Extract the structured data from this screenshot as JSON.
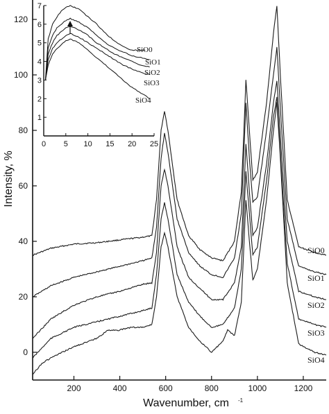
{
  "chart_data": [
    {
      "type": "line",
      "xlabel": "Wavenumber, cm",
      "xlabel_superscript": "-1",
      "ylabel": "Intensity, %",
      "xlim": [
        20,
        1300
      ],
      "ylim": [
        -10,
        127
      ],
      "xticks": [
        200,
        400,
        600,
        800,
        1000,
        1200
      ],
      "yticks": [
        0,
        20,
        40,
        60,
        80,
        100,
        120
      ],
      "grid": false,
      "legend": "none",
      "series": [
        {
          "name": "SiO0",
          "color": "#1a1a1a",
          "x": [
            20,
            100,
            200,
            300,
            400,
            500,
            540,
            560,
            580,
            595,
            610,
            650,
            700,
            750,
            800,
            850,
            900,
            930,
            950,
            965,
            980,
            1000,
            1040,
            1070,
            1085,
            1100,
            1130,
            1180,
            1250,
            1300
          ],
          "y": [
            35,
            37.5,
            39,
            39.5,
            40.5,
            41.5,
            42,
            55,
            80,
            87,
            80,
            55,
            42,
            37,
            34,
            33,
            40,
            58,
            98,
            80,
            62,
            65,
            90,
            115,
            125,
            100,
            55,
            38,
            36,
            35
          ]
        },
        {
          "name": "SiO1",
          "color": "#1a1a1a",
          "x": [
            20,
            100,
            200,
            300,
            400,
            500,
            540,
            560,
            580,
            595,
            610,
            650,
            700,
            750,
            800,
            850,
            900,
            930,
            950,
            965,
            980,
            1000,
            1040,
            1070,
            1085,
            1100,
            1130,
            1180,
            1250,
            1300
          ],
          "y": [
            20,
            24,
            27,
            29,
            31,
            33,
            34,
            45,
            70,
            79,
            72,
            48,
            36,
            31,
            28,
            27,
            34,
            50,
            90,
            70,
            54,
            56,
            80,
            100,
            110,
            88,
            48,
            31,
            29,
            28
          ]
        },
        {
          "name": "SiO2",
          "color": "#1a1a1a",
          "x": [
            20,
            100,
            200,
            300,
            400,
            500,
            540,
            560,
            580,
            595,
            610,
            650,
            700,
            750,
            800,
            850,
            900,
            930,
            950,
            965,
            980,
            1000,
            1040,
            1070,
            1085,
            1100,
            1130,
            1180,
            1250,
            1300
          ],
          "y": [
            5,
            12,
            17,
            20,
            22,
            24.5,
            25,
            36,
            60,
            66,
            60,
            38,
            27,
            23,
            19,
            19,
            25,
            38,
            75,
            58,
            42,
            45,
            68,
            90,
            98,
            78,
            40,
            22,
            20,
            19
          ]
        },
        {
          "name": "SiO3",
          "color": "#1a1a1a",
          "x": [
            20,
            100,
            200,
            300,
            400,
            500,
            540,
            560,
            580,
            595,
            610,
            650,
            700,
            750,
            800,
            850,
            900,
            930,
            950,
            965,
            980,
            1000,
            1040,
            1070,
            1085,
            1100,
            1130,
            1180,
            1250,
            1300
          ],
          "y": [
            -2,
            5,
            9,
            11,
            13,
            15,
            16,
            28,
            48,
            54,
            48,
            28,
            18,
            13,
            9,
            10,
            16,
            30,
            65,
            50,
            35,
            38,
            62,
            85,
            92,
            72,
            32,
            12,
            10,
            9
          ]
        },
        {
          "name": "SiO4",
          "color": "#1a1a1a",
          "x": [
            20,
            60,
            100,
            150,
            200,
            300,
            350,
            400,
            450,
            500,
            540,
            560,
            580,
            595,
            610,
            650,
            700,
            750,
            800,
            850,
            870,
            900,
            930,
            950,
            965,
            980,
            1000,
            1040,
            1070,
            1085,
            1100,
            1130,
            1180,
            1250,
            1300
          ],
          "y": [
            -8,
            -4,
            -2,
            0,
            2,
            5,
            8,
            8,
            9,
            9,
            10,
            20,
            38,
            43,
            38,
            20,
            9,
            4,
            0,
            4,
            8,
            6,
            18,
            55,
            40,
            26,
            30,
            55,
            80,
            90,
            70,
            25,
            3,
            0,
            -1
          ]
        }
      ]
    },
    {
      "type": "line",
      "xlim": [
        0,
        25
      ],
      "ylim": [
        0,
        7
      ],
      "xticks": [
        0,
        5,
        10,
        15,
        20,
        25
      ],
      "yticks": [
        1,
        2,
        3,
        4,
        5,
        6,
        7
      ],
      "grid": false,
      "legend": "none",
      "series": [
        {
          "name": "SiO0",
          "x": [
            0.4,
            1,
            2,
            3,
            4,
            5,
            6,
            7,
            8,
            10,
            12,
            14,
            16,
            18,
            20,
            22,
            23
          ],
          "y": [
            3,
            5.2,
            6.0,
            6.4,
            6.7,
            6.9,
            7.0,
            6.9,
            6.8,
            6.4,
            6.0,
            5.5,
            5.1,
            4.8,
            4.6,
            4.6,
            4.6
          ]
        },
        {
          "name": "SiO1",
          "x": [
            0.4,
            1,
            2,
            3,
            4,
            5,
            6,
            7,
            8,
            10,
            12,
            14,
            16,
            18,
            20,
            22,
            24
          ],
          "y": [
            3,
            4.7,
            5.4,
            5.8,
            6.0,
            6.2,
            6.3,
            6.2,
            6.1,
            5.8,
            5.4,
            5.0,
            4.7,
            4.5,
            4.3,
            4.2,
            4.1
          ]
        },
        {
          "name": "SiO2",
          "x": [
            0.4,
            1,
            2,
            3,
            4,
            5,
            6,
            7,
            8,
            10,
            12,
            14,
            16,
            18,
            20,
            22,
            24
          ],
          "y": [
            3,
            4.4,
            5.0,
            5.4,
            5.6,
            5.8,
            5.9,
            5.8,
            5.7,
            5.4,
            5.0,
            4.7,
            4.4,
            4.2,
            4.0,
            3.8,
            3.7
          ]
        },
        {
          "name": "SiO3",
          "x": [
            0.4,
            1,
            2,
            3,
            4,
            5,
            6,
            7,
            8,
            10,
            12,
            14,
            16,
            18,
            20,
            22,
            24
          ],
          "y": [
            3,
            4.1,
            4.7,
            5.0,
            5.2,
            5.4,
            5.5,
            5.4,
            5.3,
            5.0,
            4.7,
            4.4,
            4.1,
            3.8,
            3.6,
            3.4,
            3.3
          ]
        },
        {
          "name": "SiO4",
          "x": [
            0.4,
            1,
            2,
            3,
            4,
            5,
            6,
            7,
            8,
            10,
            12,
            14,
            16,
            18,
            20,
            22,
            24
          ],
          "y": [
            3,
            3.8,
            4.4,
            4.7,
            4.9,
            5.1,
            5.2,
            5.1,
            5.0,
            4.6,
            4.2,
            3.8,
            3.4,
            3.0,
            2.6,
            2.3,
            2.0
          ]
        }
      ]
    }
  ],
  "main_labels": {
    "s0": "SiO0",
    "s1": "SiO1",
    "s2": "SiO2",
    "s3": "SiO3",
    "s4": "SiO4"
  },
  "inset_labels": {
    "s0": "SiO0",
    "s1": "SiO1",
    "s2": "SiO2",
    "s3": "SiO3",
    "s4": "SiO4"
  }
}
